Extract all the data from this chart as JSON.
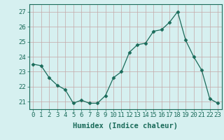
{
  "x": [
    0,
    1,
    2,
    3,
    4,
    5,
    6,
    7,
    8,
    9,
    10,
    11,
    12,
    13,
    14,
    15,
    16,
    17,
    18,
    19,
    20,
    21,
    22,
    23
  ],
  "y": [
    23.5,
    23.4,
    22.6,
    22.1,
    21.8,
    20.9,
    21.1,
    20.9,
    20.9,
    21.4,
    22.6,
    23.0,
    24.3,
    24.8,
    24.9,
    25.7,
    25.8,
    26.3,
    27.0,
    25.1,
    24.0,
    23.1,
    21.2,
    20.9
  ],
  "line_color": "#1a6b5a",
  "marker": "D",
  "marker_size": 2.5,
  "bg_color": "#d6f0f0",
  "grid_color": "#c4a8a8",
  "xlabel": "Humidex (Indice chaleur)",
  "ylabel_ticks": [
    21,
    22,
    23,
    24,
    25,
    26,
    27
  ],
  "ylim": [
    20.5,
    27.5
  ],
  "xlim": [
    -0.5,
    23.5
  ],
  "tick_color": "#1a6b5a",
  "label_color": "#1a6b5a",
  "font_size": 6.5,
  "xlabel_fontsize": 7.5
}
